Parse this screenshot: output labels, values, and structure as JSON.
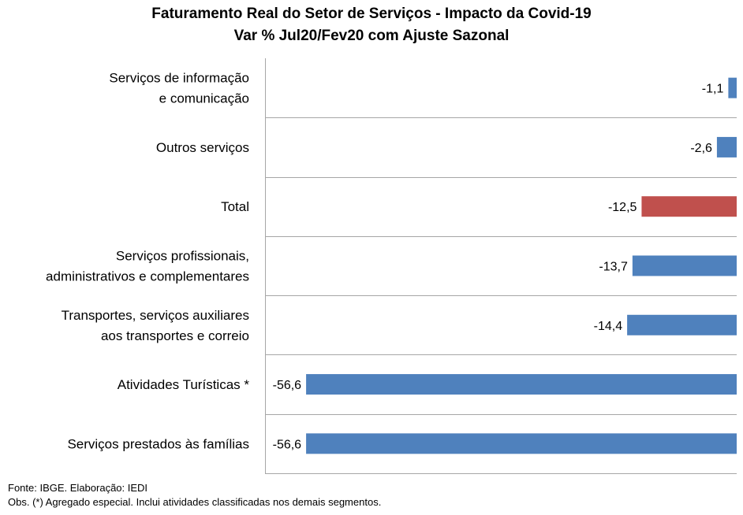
{
  "header": {
    "title": "Faturamento Real do Setor de Serviços - Impacto da Covid-19",
    "subtitle": "Var % Jul20/Fev20 com Ajuste Sazonal"
  },
  "footer": {
    "source": "Fonte: IBGE. Elaboração: IEDI",
    "note": "Obs. (*) Agregado especial. Inclui atividades classificadas nos demais segmentos."
  },
  "colors": {
    "series": "#4f81bd",
    "highlight": "#c0504d",
    "gridline": "#a6a6a6"
  },
  "chart_data": {
    "type": "bar",
    "orientation": "horizontal",
    "title": "Faturamento Real do Setor de Serviços - Impacto da Covid-19",
    "subtitle": "Var % Jul20/Fev20 com Ajuste Sazonal",
    "categories": [
      [
        "Serviços de informação",
        "e comunicação"
      ],
      [
        "Outros serviços"
      ],
      [
        "Total"
      ],
      [
        "Serviços profissionais,",
        "administrativos e complementares"
      ],
      [
        "Transportes, serviços auxiliares",
        "aos transportes e correio"
      ],
      [
        "Atividades Turísticas *"
      ],
      [
        "Serviços prestados às famílias"
      ]
    ],
    "values": [
      -1.1,
      -2.6,
      -12.5,
      -13.7,
      -14.4,
      -56.6,
      -56.6
    ],
    "data_labels": [
      "-1,1",
      "-2,6",
      "-12,5",
      "-13,7",
      "-14,4",
      "-56,6",
      "-56,6"
    ],
    "highlight_category": "Total",
    "xlim": [
      -62,
      0
    ],
    "grid": true
  }
}
